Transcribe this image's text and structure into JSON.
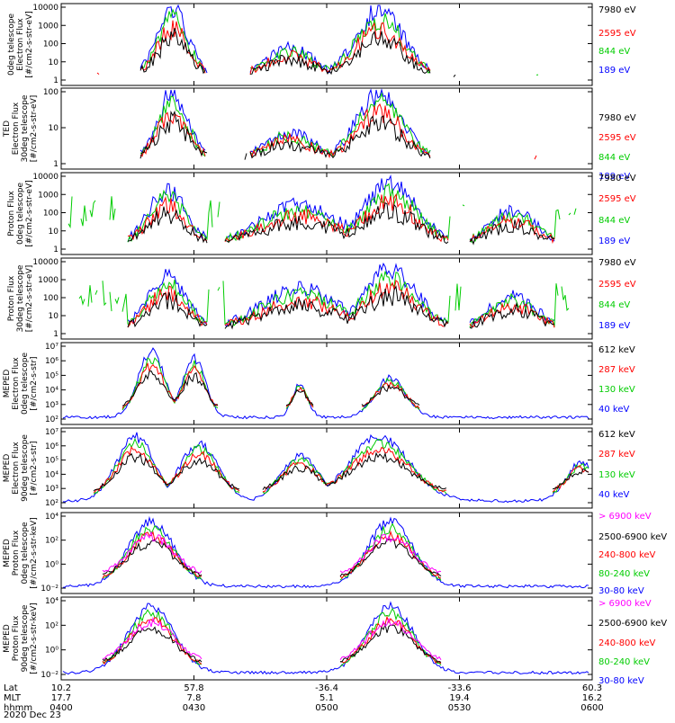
{
  "footer": {
    "rows": [
      {
        "label": "Lat",
        "values": [
          "10.2",
          "57.8",
          "-36.4",
          "-33.6",
          "60.3"
        ]
      },
      {
        "label": "MLT",
        "values": [
          "17.7",
          "7.8",
          "5.1",
          "19.4",
          "16.2"
        ]
      },
      {
        "label": "hhmm",
        "values": [
          "0400",
          "0430",
          "0500",
          "0530",
          "0600"
        ]
      }
    ],
    "date": "2020 Dec 23"
  },
  "chart_data": [
    {
      "type": "line",
      "log": true,
      "ylim": [
        1,
        10000
      ],
      "ylabel": [
        "0deg telescope",
        "Electron Flux",
        "[#/cm2-s-str-eV]"
      ],
      "yticks": [
        "1",
        "10",
        "100",
        "1000",
        "10000"
      ],
      "series": [
        {
          "name": "7980 eV",
          "color": "#000000"
        },
        {
          "name": "2595 eV",
          "color": "#ff0000"
        },
        {
          "name": "844 eV",
          "color": "#00cc00"
        },
        {
          "name": "189 eV",
          "color": "#0000ff"
        }
      ]
    },
    {
      "type": "line",
      "log": true,
      "ylim": [
        1,
        300
      ],
      "ylabel": [
        "TED",
        "Electron Flux",
        "30deg telescope",
        "[#/cm2-s-str-eV]"
      ],
      "yticks": [
        "1",
        "10",
        "100"
      ],
      "series": [
        {
          "name": "7980 eV",
          "color": "#000000"
        },
        {
          "name": "2595 eV",
          "color": "#ff0000"
        },
        {
          "name": "844 eV",
          "color": "#00cc00"
        },
        {
          "name": "189 eV",
          "color": "#0000ff"
        }
      ]
    },
    {
      "type": "line",
      "log": true,
      "ylim": [
        1,
        10000
      ],
      "ylabel": [
        "Proton Flux",
        "0deg telescope",
        "[#/cm2-s-str-eV]"
      ],
      "yticks": [
        "1",
        "10",
        "100",
        "1000",
        "10000"
      ],
      "series": [
        {
          "name": "7980 eV",
          "color": "#000000"
        },
        {
          "name": "2595 eV",
          "color": "#ff0000"
        },
        {
          "name": "844 eV",
          "color": "#00cc00"
        },
        {
          "name": "189 eV",
          "color": "#0000ff"
        }
      ]
    },
    {
      "type": "line",
      "log": true,
      "ylim": [
        1,
        10000
      ],
      "ylabel": [
        "Proton Flux",
        "30deg telescope",
        "[#/cm2-s-str-eV]"
      ],
      "yticks": [
        "1",
        "10",
        "100",
        "1000",
        "10000"
      ],
      "series": [
        {
          "name": "7980 eV",
          "color": "#000000"
        },
        {
          "name": "2595 eV",
          "color": "#ff0000"
        },
        {
          "name": "844 eV",
          "color": "#00cc00"
        },
        {
          "name": "189 eV",
          "color": "#0000ff"
        }
      ]
    },
    {
      "type": "line",
      "log": true,
      "ylim": [
        50,
        10000000
      ],
      "ylabel": [
        "MEPED",
        "Electron Flux",
        "0deg telescope",
        "[#/cm2-s-str]"
      ],
      "yticks": [
        "10²",
        "10³",
        "10⁴",
        "10⁵",
        "10⁶",
        "10⁷"
      ],
      "series": [
        {
          "name": "612 keV",
          "color": "#000000"
        },
        {
          "name": "287 keV",
          "color": "#ff0000"
        },
        {
          "name": "130 keV",
          "color": "#00cc00"
        },
        {
          "name": "40 keV",
          "color": "#0000ff"
        }
      ]
    },
    {
      "type": "line",
      "log": true,
      "ylim": [
        50,
        10000000
      ],
      "ylabel": [
        "MEPED",
        "Electron Flux",
        "90deg telescope",
        "[#/cm2-s-str]"
      ],
      "yticks": [
        "10²",
        "10³",
        "10⁴",
        "10⁵",
        "10⁶",
        "10⁷"
      ],
      "series": [
        {
          "name": "612 keV",
          "color": "#000000"
        },
        {
          "name": "287 keV",
          "color": "#ff0000"
        },
        {
          "name": "130 keV",
          "color": "#00cc00"
        },
        {
          "name": "40 keV",
          "color": "#0000ff"
        }
      ]
    },
    {
      "type": "line",
      "log": true,
      "ylim": [
        0.005,
        100000
      ],
      "ylabel": [
        "MEPED",
        "Proton Flux",
        "0deg telescope",
        "[#/cm2-s-str-keV]"
      ],
      "yticks": [
        "10⁻²",
        "10⁰",
        "10²",
        "10⁴"
      ],
      "series": [
        {
          "name": "> 6900 keV",
          "color": "#ff00ff"
        },
        {
          "name": "2500-6900 keV",
          "color": "#000000"
        },
        {
          "name": "240-800 keV",
          "color": "#ff0000"
        },
        {
          "name": "80-240 keV",
          "color": "#00cc00"
        },
        {
          "name": "30-80 keV",
          "color": "#0000ff"
        }
      ]
    },
    {
      "type": "line",
      "log": true,
      "ylim": [
        0.005,
        100000
      ],
      "ylabel": [
        "MEPED",
        "Proton Flux",
        "90deg telescope",
        "[#/cm2-s-str-keV]"
      ],
      "yticks": [
        "10⁻²",
        "10⁰",
        "10²",
        "10⁴"
      ],
      "series": [
        {
          "name": "> 6900 keV",
          "color": "#ff00ff"
        },
        {
          "name": "2500-6900 keV",
          "color": "#000000"
        },
        {
          "name": "240-800 keV",
          "color": "#ff0000"
        },
        {
          "name": "80-240 keV",
          "color": "#00cc00"
        },
        {
          "name": "30-80 keV",
          "color": "#0000ff"
        }
      ]
    }
  ]
}
